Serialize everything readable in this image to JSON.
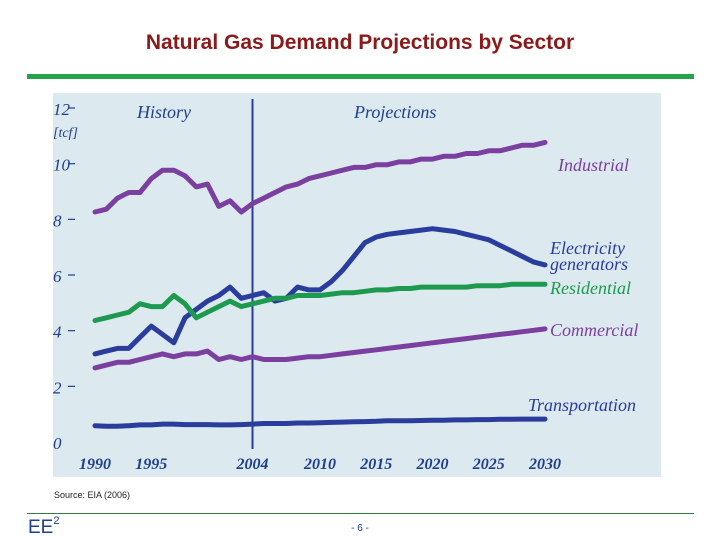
{
  "page": {
    "title": "Natural Gas Demand Projections by Sector",
    "source": "Source: EIA (2006)",
    "logo_text": "EE",
    "logo_sup": "2",
    "page_number": "- 6 -"
  },
  "colors": {
    "title": "#8b1a1a",
    "rule": "#23a34a",
    "plot_bg": "#dce9ee",
    "axis_text": "#1f3f8f",
    "industrial": "#7b3fa0",
    "electricity": "#2a3c9c",
    "residential": "#1e9a50",
    "commercial": "#7b3fa0",
    "transportation": "#2a3c9c"
  },
  "chart_data": {
    "type": "line",
    "title": "Natural Gas Demand Projections by Sector",
    "ylabel": "[tcf]",
    "xlim": [
      1990,
      2030
    ],
    "ylim": [
      0,
      12
    ],
    "divider_year": 2004,
    "history_label": "History",
    "projections_label": "Projections",
    "x_ticks": [
      "1990",
      "1995",
      "2004",
      "2010",
      "2015",
      "2020",
      "2025",
      "2030"
    ],
    "y_ticks": [
      "0",
      "2",
      "4",
      "6",
      "8",
      "10",
      "12"
    ],
    "x": [
      1990,
      1991,
      1992,
      1993,
      1994,
      1995,
      1996,
      1997,
      1998,
      1999,
      2000,
      2001,
      2002,
      2003,
      2004,
      2005,
      2006,
      2007,
      2008,
      2009,
      2010,
      2011,
      2012,
      2013,
      2014,
      2015,
      2016,
      2017,
      2018,
      2019,
      2020,
      2021,
      2022,
      2023,
      2024,
      2025,
      2026,
      2027,
      2028,
      2029,
      2030
    ],
    "series": [
      {
        "key": "industrial",
        "name": "Industrial",
        "values": [
          8.3,
          8.4,
          8.8,
          9.0,
          9.0,
          9.5,
          9.8,
          9.8,
          9.6,
          9.2,
          9.3,
          8.5,
          8.7,
          8.3,
          8.6,
          8.8,
          9.0,
          9.2,
          9.3,
          9.5,
          9.6,
          9.7,
          9.8,
          9.9,
          9.9,
          10.0,
          10.0,
          10.1,
          10.1,
          10.2,
          10.2,
          10.3,
          10.3,
          10.4,
          10.4,
          10.5,
          10.5,
          10.6,
          10.7,
          10.7,
          10.8
        ]
      },
      {
        "key": "electricity",
        "name": "Electricity generators",
        "values": [
          3.2,
          3.3,
          3.4,
          3.4,
          3.8,
          4.2,
          3.9,
          3.6,
          4.5,
          4.8,
          5.1,
          5.3,
          5.6,
          5.2,
          5.3,
          5.4,
          5.1,
          5.2,
          5.6,
          5.5,
          5.5,
          5.8,
          6.2,
          6.7,
          7.2,
          7.4,
          7.5,
          7.55,
          7.6,
          7.65,
          7.7,
          7.65,
          7.6,
          7.5,
          7.4,
          7.3,
          7.1,
          6.9,
          6.7,
          6.5,
          6.4
        ]
      },
      {
        "key": "residential",
        "name": "Residential",
        "values": [
          4.4,
          4.5,
          4.6,
          4.7,
          5.0,
          4.9,
          4.9,
          5.3,
          5.0,
          4.5,
          4.7,
          4.9,
          5.1,
          4.9,
          5.0,
          5.1,
          5.2,
          5.2,
          5.3,
          5.3,
          5.3,
          5.35,
          5.4,
          5.4,
          5.45,
          5.5,
          5.5,
          5.55,
          5.55,
          5.6,
          5.6,
          5.6,
          5.6,
          5.6,
          5.65,
          5.65,
          5.65,
          5.7,
          5.7,
          5.7,
          5.7
        ]
      },
      {
        "key": "commercial",
        "name": "Commercial",
        "values": [
          2.7,
          2.8,
          2.9,
          2.9,
          3.0,
          3.1,
          3.2,
          3.1,
          3.2,
          3.2,
          3.3,
          3.0,
          3.1,
          3.0,
          3.1,
          3.0,
          3.0,
          3.0,
          3.05,
          3.1,
          3.1,
          3.15,
          3.2,
          3.25,
          3.3,
          3.35,
          3.4,
          3.45,
          3.5,
          3.55,
          3.6,
          3.65,
          3.7,
          3.75,
          3.8,
          3.85,
          3.9,
          3.95,
          4.0,
          4.05,
          4.1
        ]
      },
      {
        "key": "transportation",
        "name": "Transportation",
        "values": [
          0.62,
          0.6,
          0.6,
          0.62,
          0.65,
          0.65,
          0.68,
          0.68,
          0.66,
          0.66,
          0.66,
          0.65,
          0.65,
          0.66,
          0.68,
          0.7,
          0.7,
          0.7,
          0.72,
          0.72,
          0.73,
          0.74,
          0.75,
          0.76,
          0.77,
          0.78,
          0.8,
          0.8,
          0.8,
          0.81,
          0.82,
          0.82,
          0.83,
          0.83,
          0.84,
          0.84,
          0.85,
          0.85,
          0.86,
          0.86,
          0.86
        ]
      }
    ],
    "series_labels": {
      "industrial": [
        "Industrial"
      ],
      "electricity": [
        "Electricity",
        "generators"
      ],
      "residential": [
        "Residential"
      ],
      "commercial": [
        "Commercial"
      ],
      "transportation": [
        "Transportation"
      ]
    }
  }
}
